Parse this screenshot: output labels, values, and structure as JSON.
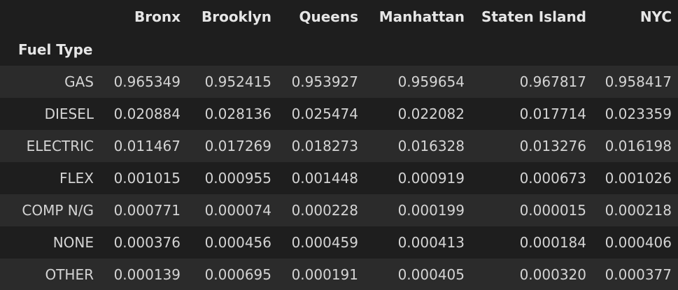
{
  "table": {
    "index_name": "Fuel Type",
    "columns": [
      "Bronx",
      "Brooklyn",
      "Queens",
      "Manhattan",
      "Staten Island",
      "NYC"
    ],
    "rows": [
      {
        "label": "GAS",
        "values": [
          "0.965349",
          "0.952415",
          "0.953927",
          "0.959654",
          "0.967817",
          "0.958417"
        ]
      },
      {
        "label": "DIESEL",
        "values": [
          "0.020884",
          "0.028136",
          "0.025474",
          "0.022082",
          "0.017714",
          "0.023359"
        ]
      },
      {
        "label": "ELECTRIC",
        "values": [
          "0.011467",
          "0.017269",
          "0.018273",
          "0.016328",
          "0.013276",
          "0.016198"
        ]
      },
      {
        "label": "FLEX",
        "values": [
          "0.001015",
          "0.000955",
          "0.001448",
          "0.000919",
          "0.000673",
          "0.001026"
        ]
      },
      {
        "label": "COMP N/G",
        "values": [
          "0.000771",
          "0.000074",
          "0.000228",
          "0.000199",
          "0.000015",
          "0.000218"
        ]
      },
      {
        "label": "NONE",
        "values": [
          "0.000376",
          "0.000456",
          "0.000459",
          "0.000413",
          "0.000184",
          "0.000406"
        ]
      },
      {
        "label": "OTHER",
        "values": [
          "0.000139",
          "0.000695",
          "0.000191",
          "0.000405",
          "0.000320",
          "0.000377"
        ]
      }
    ]
  }
}
